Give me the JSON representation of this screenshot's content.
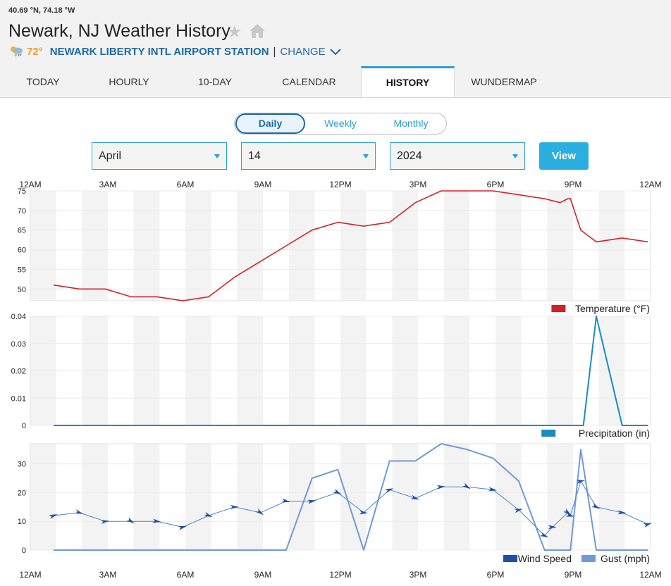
{
  "header": {
    "coords": "40.69 °N, 74.18 °W",
    "title": "Newark, NJ Weather History",
    "current_temp": "72°",
    "station": "NEWARK LIBERTY INTL AIRPORT STATION",
    "separator": "|",
    "change_label": "CHANGE",
    "icons": [
      "star-icon",
      "home-icon",
      "thunderstorm-icon",
      "chevron-down-icon"
    ]
  },
  "tabs": [
    {
      "label": "TODAY",
      "active": false
    },
    {
      "label": "HOURLY",
      "active": false
    },
    {
      "label": "10-DAY",
      "active": false
    },
    {
      "label": "CALENDAR",
      "active": false
    },
    {
      "label": "HISTORY",
      "active": true
    },
    {
      "label": "WUNDERMAP",
      "active": false
    }
  ],
  "period": {
    "options": [
      "Daily",
      "Weekly",
      "Monthly"
    ],
    "selected": "Daily"
  },
  "filters": {
    "month": "April",
    "day": "14",
    "year": "2024",
    "view_label": "View"
  },
  "colors": {
    "accent": "#2b9fd4",
    "temperature": "#d42128",
    "precipitation": "#1a8cc0",
    "wind_speed": "#1a52a8",
    "gust": "#6e9bd6",
    "current_temp": "#f39c26"
  },
  "chart_data": [
    {
      "type": "line",
      "x_ticks": [
        "12AM",
        "3AM",
        "6AM",
        "9AM",
        "12PM",
        "3PM",
        "6PM",
        "9PM",
        "12AM"
      ],
      "y_ticks": [
        50,
        55,
        60,
        65,
        70,
        75
      ],
      "ylim": [
        47,
        75
      ],
      "xlim_hours": [
        0,
        24
      ],
      "grid": true,
      "legend_position": "bottom-right",
      "series": [
        {
          "name": "Temperature (°F)",
          "x_hours": [
            0.9,
            1.9,
            2.9,
            3.9,
            4.9,
            5.9,
            6.9,
            7.9,
            8.9,
            9.9,
            10.9,
            11.9,
            12.9,
            13.9,
            14.9,
            15.9,
            16.9,
            17.9,
            18.9,
            19.9,
            20.5,
            20.8,
            20.9,
            21.3,
            21.9,
            22.9,
            23.9
          ],
          "values": [
            51,
            50,
            50,
            48,
            48,
            47,
            48,
            53,
            57,
            61,
            65,
            67,
            66,
            67,
            72,
            75,
            75,
            75,
            74,
            73,
            72,
            73,
            73,
            65,
            62,
            63,
            62
          ]
        }
      ]
    },
    {
      "type": "line",
      "y_ticks": [
        0,
        0.01,
        0.02,
        0.03,
        0.04
      ],
      "ylim": [
        0,
        0.04
      ],
      "xlim_hours": [
        0,
        24
      ],
      "grid": true,
      "legend_position": "bottom-right",
      "series": [
        {
          "name": "Precipitation (in)",
          "x_hours": [
            0.9,
            21.4,
            21.9,
            22.9,
            23.9
          ],
          "values": [
            0,
            0,
            0.04,
            0,
            0
          ]
        }
      ]
    },
    {
      "type": "line",
      "x_ticks": [
        "12AM",
        "3AM",
        "6AM",
        "9AM",
        "12PM",
        "3PM",
        "6PM",
        "9PM",
        "12AM"
      ],
      "y_ticks": [
        0,
        10,
        20,
        30
      ],
      "ylim": [
        0,
        37
      ],
      "xlim_hours": [
        0,
        24
      ],
      "grid": true,
      "legend_position": "bottom-right",
      "series": [
        {
          "name": "Wind Speed",
          "x_hours": [
            0.9,
            1.9,
            2.9,
            3.9,
            4.9,
            5.9,
            6.9,
            7.9,
            8.9,
            9.9,
            10.9,
            11.9,
            12.9,
            13.9,
            14.9,
            15.9,
            16.9,
            17.9,
            18.9,
            19.9,
            20.2,
            20.8,
            20.9,
            21.3,
            21.9,
            22.9,
            23.9
          ],
          "values": [
            12,
            13,
            10,
            10,
            10,
            8,
            12,
            15,
            13,
            17,
            17,
            20,
            13,
            21,
            18,
            22,
            22,
            21,
            14,
            5,
            8,
            13,
            12,
            24,
            15,
            13,
            9
          ]
        },
        {
          "name": "Gust (mph)",
          "x_hours": [
            0.9,
            9.9,
            10.9,
            11.9,
            12.9,
            13.9,
            14.9,
            15.9,
            16.9,
            17.9,
            18.9,
            19.9,
            20.9,
            21.3,
            21.9,
            23.9
          ],
          "values": [
            0,
            0,
            25,
            28,
            0,
            31,
            31,
            37,
            35,
            32,
            24,
            0,
            0,
            35,
            0,
            0
          ]
        }
      ]
    }
  ]
}
